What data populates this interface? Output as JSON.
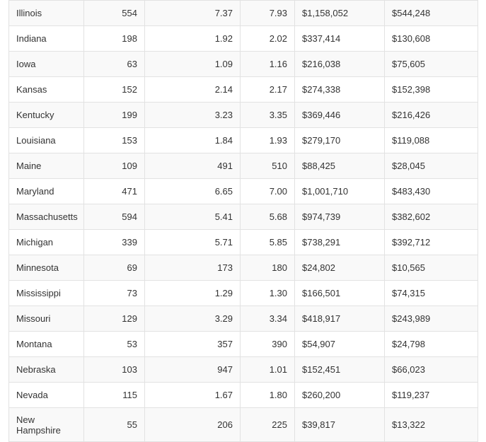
{
  "table": {
    "rows": [
      [
        "Illinois",
        "554",
        "7.37",
        "7.93",
        "$1,158,052",
        "$544,248"
      ],
      [
        "Indiana",
        "198",
        "1.92",
        "2.02",
        "$337,414",
        "$130,608"
      ],
      [
        "Iowa",
        "63",
        "1.09",
        "1.16",
        "$216,038",
        "$75,605"
      ],
      [
        "Kansas",
        "152",
        "2.14",
        "2.17",
        "$274,338",
        "$152,398"
      ],
      [
        "Kentucky",
        "199",
        "3.23",
        "3.35",
        "$369,446",
        "$216,426"
      ],
      [
        "Louisiana",
        "153",
        "1.84",
        "1.93",
        "$279,170",
        "$119,088"
      ],
      [
        "Maine",
        "109",
        "491",
        "510",
        "$88,425",
        "$28,045"
      ],
      [
        "Maryland",
        "471",
        "6.65",
        "7.00",
        "$1,001,710",
        "$483,430"
      ],
      [
        "Massachusetts",
        "594",
        "5.41",
        "5.68",
        "$974,739",
        "$382,602"
      ],
      [
        "Michigan",
        "339",
        "5.71",
        "5.85",
        "$738,291",
        "$392,712"
      ],
      [
        "Minnesota",
        "69",
        "173",
        "180",
        "$24,802",
        "$10,565"
      ],
      [
        "Mississippi",
        "73",
        "1.29",
        "1.30",
        "$166,501",
        "$74,315"
      ],
      [
        "Missouri",
        "129",
        "3.29",
        "3.34",
        "$418,917",
        "$243,989"
      ],
      [
        "Montana",
        "53",
        "357",
        "390",
        "$54,907",
        "$24,798"
      ],
      [
        "Nebraska",
        "103",
        "947",
        "1.01",
        "$152,451",
        "$66,023"
      ],
      [
        "Nevada",
        "115",
        "1.67",
        "1.80",
        "$260,200",
        "$119,237"
      ],
      [
        "New Hampshire",
        "55",
        "206",
        "225",
        "$39,817",
        "$13,322"
      ]
    ]
  }
}
